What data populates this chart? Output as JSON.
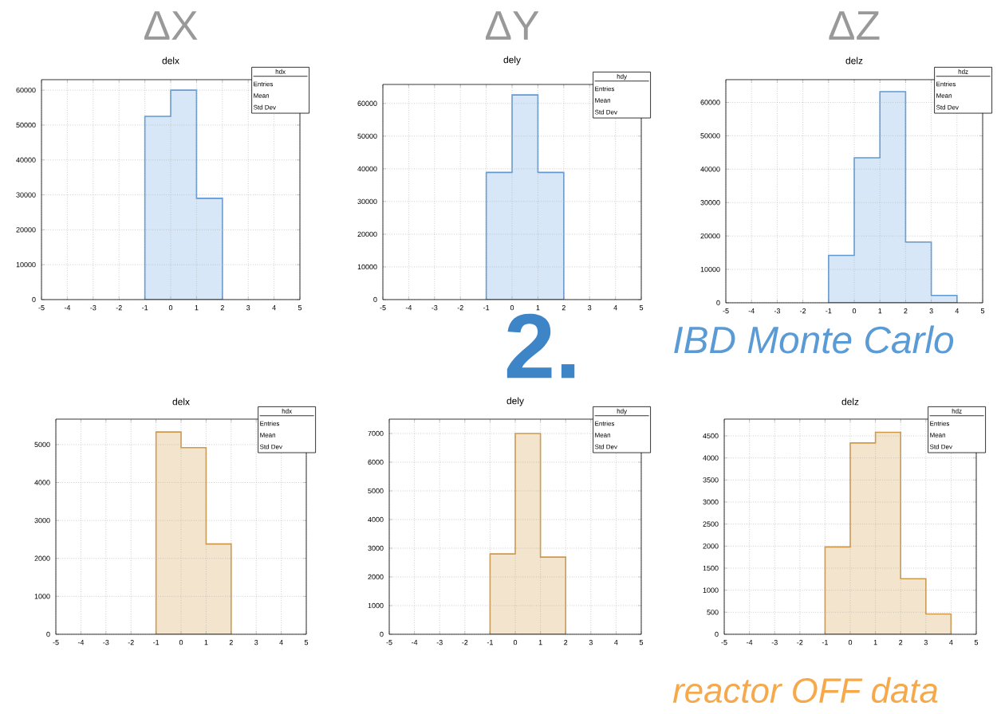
{
  "chart_data": [
    {
      "type": "histogram",
      "title": "ΔX",
      "subtitle": "delx",
      "bins": [
        -1,
        0,
        1,
        2
      ],
      "values": [
        52500,
        60000,
        29000
      ],
      "color": "#d7e7f7",
      "xlim": [
        -5,
        5
      ],
      "xticks": [
        -5,
        -4,
        -3,
        -2,
        -1,
        0,
        1,
        2,
        3,
        4,
        5
      ],
      "ylim": [
        0,
        63000
      ],
      "yticks": [
        0,
        10000,
        20000,
        30000,
        40000,
        50000,
        60000
      ],
      "grid": true,
      "annotations": [
        "hdx",
        "Entries",
        "Mean",
        "Std Dev"
      ]
    },
    {
      "type": "histogram",
      "title": "ΔY",
      "subtitle": "dely",
      "bins": [
        -1,
        0,
        1,
        2
      ],
      "values": [
        38900,
        62600,
        38900
      ],
      "color": "#d7e7f7",
      "xlim": [
        -5,
        5
      ],
      "xticks": [
        -5,
        -4,
        -3,
        -2,
        -1,
        0,
        1,
        2,
        3,
        4,
        5
      ],
      "ylim": [
        0,
        65800
      ],
      "yticks": [
        0,
        10000,
        20000,
        30000,
        40000,
        50000,
        60000
      ],
      "grid": true,
      "annotations": [
        "hdy",
        "Entries",
        "Mean",
        "Std Dev",
        "2."
      ]
    },
    {
      "type": "histogram",
      "title": "ΔZ",
      "subtitle": "delz",
      "bins": [
        -1,
        0,
        1,
        2,
        3,
        4
      ],
      "values": [
        14200,
        43400,
        63200,
        18200,
        2200
      ],
      "color": "#d7e7f7",
      "xlim": [
        -5,
        5
      ],
      "xticks": [
        -5,
        -4,
        -3,
        -2,
        -1,
        0,
        1,
        2,
        3,
        4,
        5
      ],
      "ylim": [
        0,
        66800
      ],
      "yticks": [
        0,
        10000,
        20000,
        30000,
        40000,
        50000,
        60000
      ],
      "grid": true,
      "annotations": [
        "hdz",
        "Entries",
        "Mean",
        "Std Dev",
        "IBD Monte Carlo"
      ]
    },
    {
      "type": "histogram",
      "title": "delx",
      "bins": [
        -1,
        0,
        1,
        2
      ],
      "values": [
        5330,
        4920,
        2380
      ],
      "color": "#f3e4cd",
      "xlim": [
        -5,
        5
      ],
      "xticks": [
        -5,
        -4,
        -3,
        -2,
        -1,
        0,
        1,
        2,
        3,
        4,
        5
      ],
      "ylim": [
        0,
        5670
      ],
      "yticks": [
        0,
        1000,
        2000,
        3000,
        4000,
        5000
      ],
      "grid": true,
      "annotations": [
        "hdx",
        "Entries",
        "Mean",
        "Std Dev"
      ]
    },
    {
      "type": "histogram",
      "title": "dely",
      "bins": [
        -1,
        0,
        1,
        2
      ],
      "values": [
        2800,
        7000,
        2690
      ],
      "color": "#f3e4cd",
      "xlim": [
        -5,
        5
      ],
      "xticks": [
        -5,
        -4,
        -3,
        -2,
        -1,
        0,
        1,
        2,
        3,
        4,
        5
      ],
      "ylim": [
        0,
        7500
      ],
      "yticks": [
        0,
        1000,
        2000,
        3000,
        4000,
        5000,
        6000,
        7000
      ],
      "grid": true,
      "annotations": [
        "hdy",
        "Entries",
        "Mean",
        "Std Dev"
      ]
    },
    {
      "type": "histogram",
      "title": "delz",
      "bins": [
        -1,
        0,
        1,
        2,
        3,
        4
      ],
      "values": [
        1980,
        4340,
        4580,
        1260,
        460
      ],
      "color": "#f3e4cd",
      "xlim": [
        -5,
        5
      ],
      "xticks": [
        -5,
        -4,
        -3,
        -2,
        -1,
        0,
        1,
        2,
        3,
        4,
        5
      ],
      "ylim": [
        0,
        4880
      ],
      "yticks": [
        0,
        500,
        1000,
        1500,
        2000,
        2500,
        3000,
        3500,
        4000,
        4500
      ],
      "grid": true,
      "annotations": [
        "hdz",
        "Entries",
        "Mean",
        "Std Dev",
        "reactor OFF data"
      ]
    }
  ]
}
